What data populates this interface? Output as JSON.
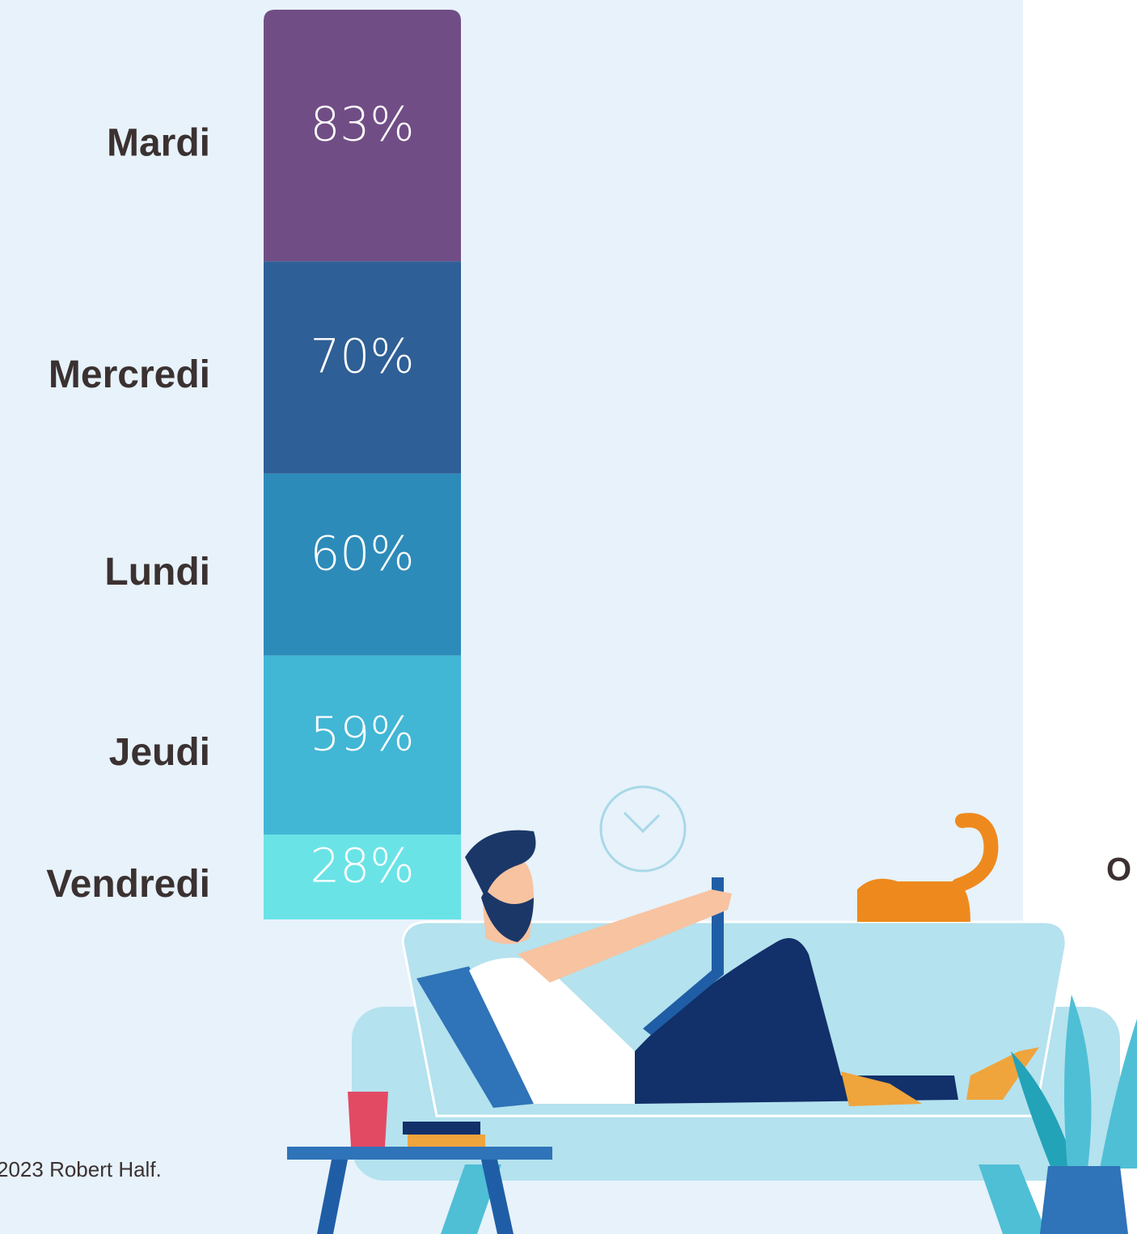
{
  "chart_data": {
    "type": "stacked-column",
    "categories": [
      "Mardi",
      "Mercredi",
      "Lundi",
      "Jeudi",
      "Vendredi"
    ],
    "values": [
      83,
      70,
      60,
      59,
      28
    ],
    "value_labels": [
      "83%",
      "70%",
      "60%",
      "59%",
      "28%"
    ],
    "colors": [
      "#714d85",
      "#2e5f96",
      "#2d8bb9",
      "#42b6d5",
      "#6ae3e7"
    ]
  },
  "side_text": "O",
  "footer": "2023 Robert Half."
}
